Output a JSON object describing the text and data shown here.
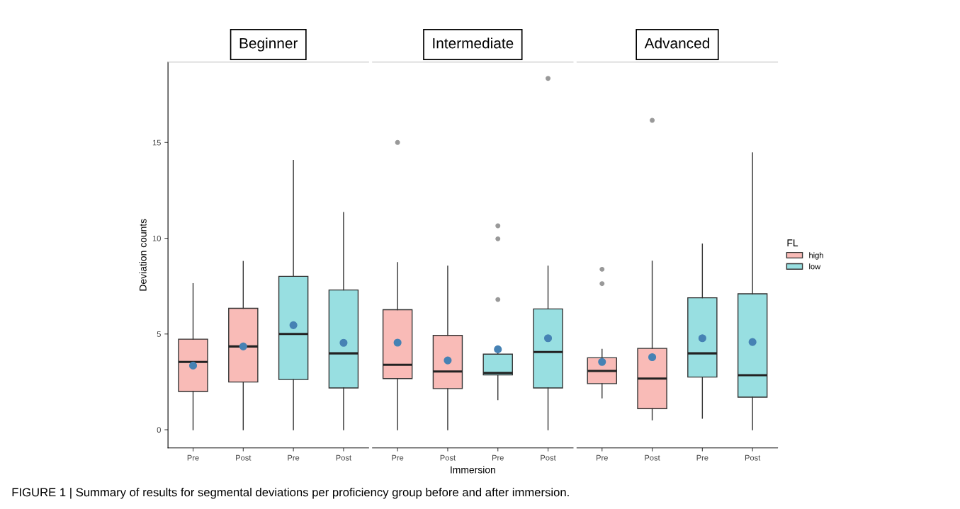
{
  "chart_data": [
    {
      "type": "box",
      "title": "Beginner",
      "ylabel": "Deviation counts",
      "categories": [
        "Pre",
        "Post",
        "Pre",
        "Post"
      ],
      "ylim": [
        -0.95,
        19.2
      ],
      "yticks": [
        0,
        5,
        10,
        15
      ],
      "annotations": [
        "FIGURE 1 | Summary of results for segmental deviations per proficiency group before and after immersion."
      ],
      "series": [
        {
          "color": "#f9bbb7",
          "boxes": [
            {
              "low": 0,
              "q1": 2.0,
              "median": 3.54,
              "q3": 4.73,
              "high": 7.63,
              "mean": 3.35
            },
            {
              "low": 0,
              "q1": 2.49,
              "median": 4.35,
              "q3": 6.34,
              "high": 8.79,
              "mean": 4.35
            },
            null,
            null
          ]
        },
        {
          "color": "#98dfe1",
          "boxes": [
            null,
            null,
            {
              "low": 0,
              "q1": 2.62,
              "median": 5.0,
              "q3": 8.01,
              "high": 14.06,
              "mean": 5.46
            },
            {
              "low": 0,
              "q1": 2.18,
              "median": 3.99,
              "q3": 7.3,
              "high": 11.34,
              "mean": 4.54
            }
          ]
        }
      ]
    },
    {
      "type": "box",
      "title": "Intermediate",
      "xlabel": "Immersion",
      "categories": [
        "Pre",
        "Post",
        "Pre",
        "Post"
      ],
      "ylim": [
        -0.95,
        19.2
      ],
      "yticks": [
        0,
        5,
        10,
        15
      ],
      "tick_labels": "x",
      "series": [
        {
          "color": "#f9bbb7",
          "boxes": [
            {
              "low": 0,
              "q1": 2.67,
              "median": 3.39,
              "q3": 6.27,
              "high": 8.73,
              "mean": 4.55,
              "outliers": [
                15.0
              ]
            },
            {
              "low": 0,
              "q1": 2.15,
              "median": 3.04,
              "q3": 4.93,
              "high": 8.54,
              "mean": 3.62
            },
            null,
            null
          ]
        },
        {
          "color": "#98dfe1",
          "boxes": [
            null,
            null,
            {
              "low": 1.57,
              "q1": 2.86,
              "median": 2.97,
              "q3": 3.95,
              "high": 4.02,
              "mean": 4.2,
              "outliers": [
                6.8,
                9.97,
                10.65
              ]
            },
            {
              "low": 0,
              "q1": 2.18,
              "median": 4.06,
              "q3": 6.31,
              "high": 8.54,
              "mean": 4.78,
              "outliers": [
                18.35
              ]
            }
          ]
        }
      ]
    },
    {
      "type": "box",
      "title": "Advanced",
      "categories": [
        "Pre",
        "Post",
        "Pre",
        "Post"
      ],
      "ylim": [
        -0.95,
        19.2
      ],
      "yticks": [
        0,
        5,
        10,
        15
      ],
      "tick_labels": "x",
      "legend": "right",
      "legend_title": "FL",
      "series": [
        {
          "name": "high",
          "color": "#f9bbb7",
          "boxes": [
            {
              "low": 1.66,
              "q1": 2.41,
              "median": 3.07,
              "q3": 3.76,
              "high": 4.2,
              "mean": 3.54,
              "outliers": [
                7.63,
                8.38
              ]
            },
            {
              "low": 0.52,
              "q1": 1.1,
              "median": 2.67,
              "q3": 4.25,
              "high": 8.8,
              "mean": 3.79,
              "outliers": [
                16.16
              ]
            },
            null,
            null
          ]
        },
        {
          "name": "low",
          "color": "#98dfe1",
          "boxes": [
            null,
            null,
            {
              "low": 0.6,
              "q1": 2.75,
              "median": 3.99,
              "q3": 6.89,
              "high": 9.7,
              "mean": 4.78
            },
            {
              "low": 0,
              "q1": 1.7,
              "median": 2.85,
              "q3": 7.1,
              "high": 14.46,
              "mean": 4.58
            }
          ]
        }
      ]
    }
  ]
}
